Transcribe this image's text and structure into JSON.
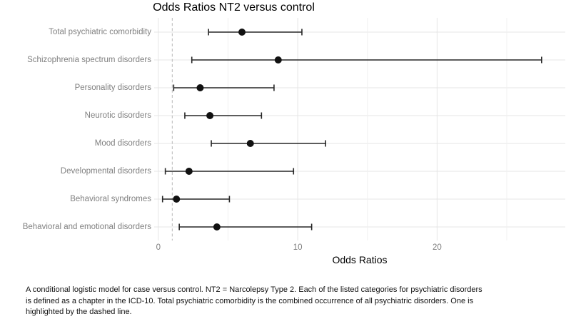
{
  "chart_data": {
    "type": "scatter",
    "subtype": "forest-plot",
    "title": "Odds Ratios NT2 versus control",
    "xlabel": "Odds Ratios",
    "ylabel": "",
    "xlim": [
      -0.3,
      29.2
    ],
    "x_ticks": [
      0,
      10,
      20
    ],
    "x_minor_gridlines": [
      5,
      15,
      25
    ],
    "reference_line": {
      "x": 1,
      "style": "dashed",
      "note": "odds ratio of one highlighted by dashed line"
    },
    "grid": true,
    "legend": "none",
    "rows": [
      {
        "label": "Total psychiatric comorbidity",
        "or": 6.0,
        "ci_low": 3.6,
        "ci_high": 10.3
      },
      {
        "label": "Schizophrenia spectrum disorders",
        "or": 8.6,
        "ci_low": 2.4,
        "ci_high": 27.5
      },
      {
        "label": "Personality disorders",
        "or": 3.0,
        "ci_low": 1.1,
        "ci_high": 8.3
      },
      {
        "label": "Neurotic disorders",
        "or": 3.7,
        "ci_low": 1.9,
        "ci_high": 7.4
      },
      {
        "label": "Mood disorders",
        "or": 6.6,
        "ci_low": 3.8,
        "ci_high": 12.0
      },
      {
        "label": "Developmental disorders",
        "or": 2.2,
        "ci_low": 0.5,
        "ci_high": 9.7
      },
      {
        "label": "Behavioral syndromes",
        "or": 1.3,
        "ci_low": 0.3,
        "ci_high": 5.1
      },
      {
        "label": "Behavioral and emotional disorders",
        "or": 4.2,
        "ci_low": 1.5,
        "ci_high": 11.0
      }
    ],
    "colors": {
      "point": "#111111",
      "error_bar": "#262626",
      "grid_major": "#e5e5e5",
      "grid_minor": "#f0f0f0",
      "reference": "#c4c4c4",
      "axis_text": "#808080",
      "title_text": "#000000"
    }
  },
  "caption": {
    "lines": [
      "A conditional logistic model for case versus control. NT2 = Narcolepsy Type 2. Each of the listed categories for psychiatric disorders",
      "is defined as a chapter in the ICD-10. Total psychiatric comorbidity is the combined occurrence of all psychiatric disorders. One is",
      "highlighted by the dashed line."
    ]
  }
}
